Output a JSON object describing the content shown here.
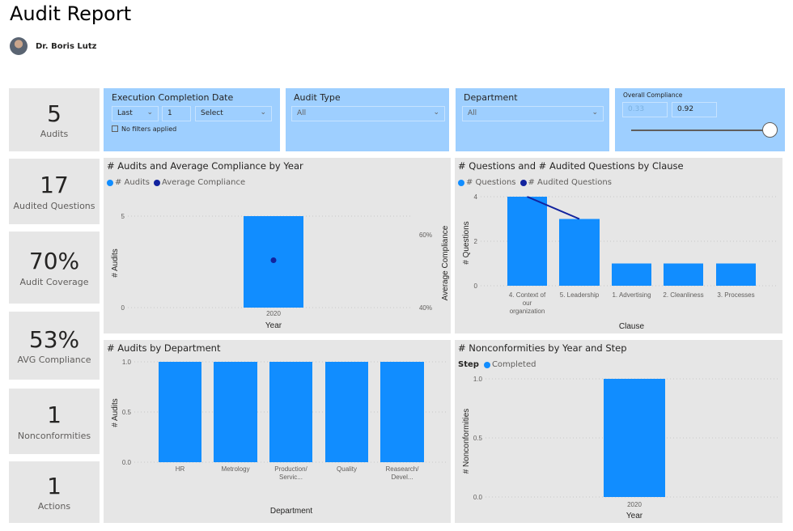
{
  "header": {
    "title": "Audit Report",
    "author": "Dr. Boris Lutz"
  },
  "kpis": [
    {
      "value": "5",
      "label": "Audits"
    },
    {
      "value": "17",
      "label": "Audited Questions"
    },
    {
      "value": "70%",
      "label": "Audit Coverage"
    },
    {
      "value": "53%",
      "label": "AVG Compliance"
    },
    {
      "value": "1",
      "label": "Nonconformities"
    },
    {
      "value": "1",
      "label": "Actions"
    }
  ],
  "filters": {
    "date": {
      "label": "Execution Completion Date",
      "mode": "Last",
      "count": "1",
      "unit": "Select",
      "status": "No filters applied"
    },
    "audit_type": {
      "label": "Audit Type",
      "value": "All"
    },
    "department": {
      "label": "Department",
      "value": "All"
    },
    "compliance": {
      "label": "Overall Compliance",
      "min": "0.33",
      "max": "0.92",
      "slider_value": 0.92
    }
  },
  "colors": {
    "bar": "#118dff",
    "line": "#12239e",
    "panel": "#e6e6e6",
    "slicer": "#9ecfff"
  },
  "chart_data": [
    {
      "type": "bar",
      "title": "# Audits and Average Compliance by Year",
      "xlabel": "Year",
      "ylabel": "# Audits",
      "y2label": "Average Compliance",
      "legend": [
        "# Audits",
        "Average Compliance"
      ],
      "categories": [
        "2020"
      ],
      "series": [
        {
          "name": "# Audits",
          "values": [
            5
          ]
        },
        {
          "name": "Average Compliance",
          "values": [
            0.53
          ]
        }
      ],
      "yticks": [
        "0",
        "5"
      ],
      "y2ticks": [
        "40%",
        "60%"
      ],
      "ylim": [
        0,
        5
      ],
      "y2lim": [
        0.4,
        0.6
      ]
    },
    {
      "type": "bar",
      "title": "# Questions and # Audited Questions by Clause",
      "xlabel": "Clause",
      "ylabel": "# Questions",
      "legend": [
        "# Questions",
        "# Audited Questions"
      ],
      "categories": [
        "4. Context of our organization",
        "5. Leadership",
        "1. Advertising",
        "2. Cleanliness",
        "3. Processes"
      ],
      "series": [
        {
          "name": "# Questions",
          "values": [
            4,
            3,
            1,
            1,
            1
          ]
        },
        {
          "name": "# Audited Questions",
          "values": [
            4,
            3,
            null,
            null,
            null
          ]
        }
      ],
      "yticks": [
        "0",
        "2",
        "4"
      ],
      "ylim": [
        0,
        4
      ]
    },
    {
      "type": "bar",
      "title": "# Audits by Department",
      "xlabel": "Department",
      "ylabel": "# Audits",
      "categories": [
        "HR",
        "Metrology",
        "Production/Servic...",
        "Quality",
        "Reasearch/Devel..."
      ],
      "series": [
        {
          "values": [
            1,
            1,
            1,
            1,
            1
          ]
        }
      ],
      "yticks": [
        "0.0",
        "0.5",
        "1.0"
      ],
      "ylim": [
        0,
        1
      ]
    },
    {
      "type": "bar",
      "title": "# Nonconformities by Year and Step",
      "xlabel": "Year",
      "ylabel": "# Nonconformities",
      "legend_title": "Step",
      "legend": [
        "Completed"
      ],
      "categories": [
        "2020"
      ],
      "series": [
        {
          "name": "Completed",
          "values": [
            1
          ]
        }
      ],
      "yticks": [
        "0.0",
        "0.5",
        "1.0"
      ],
      "ylim": [
        0,
        1
      ]
    }
  ]
}
